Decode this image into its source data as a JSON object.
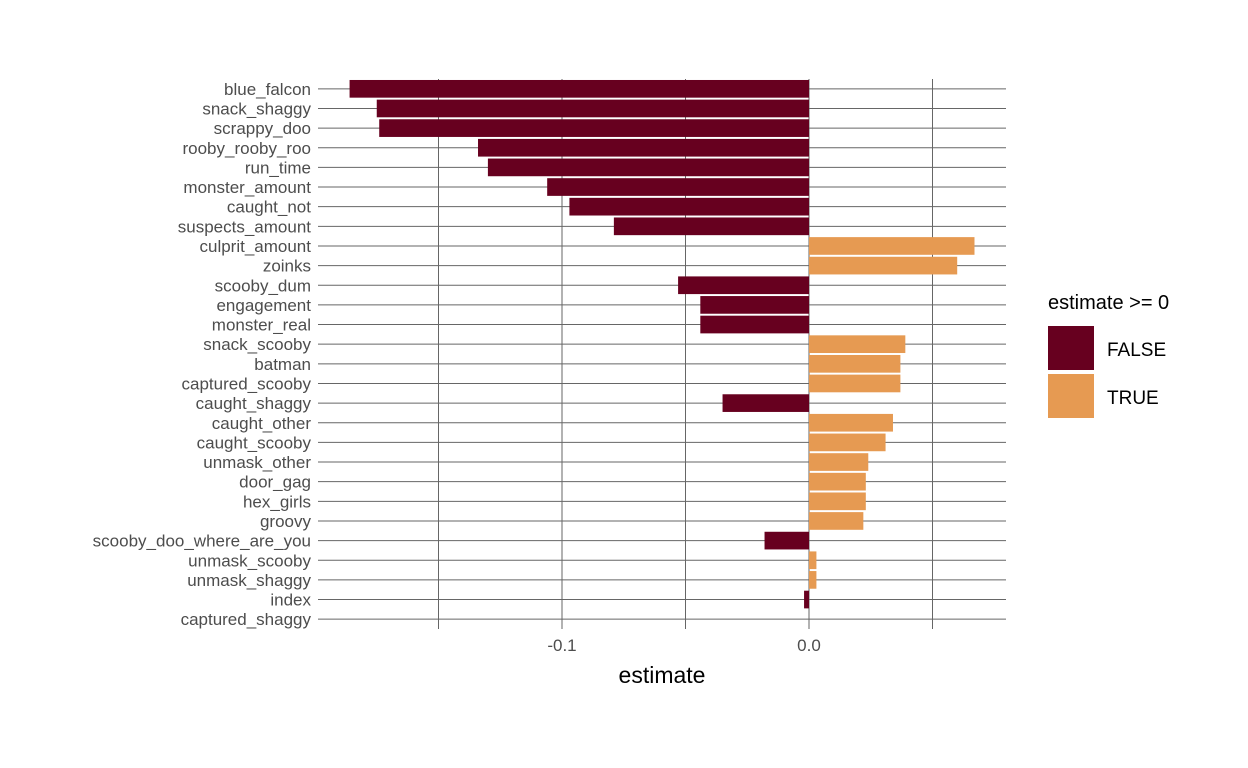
{
  "chart_data": {
    "type": "bar",
    "orientation": "horizontal",
    "xlabel": "estimate",
    "ylabel": "",
    "xlim": [
      -0.2,
      0.08
    ],
    "x_ticks": [
      -0.1,
      0.0
    ],
    "x_tick_labels": [
      "-0.1",
      "0.0"
    ],
    "grid": true,
    "legend": {
      "title": "estimate >= 0",
      "position": "right",
      "entries": [
        {
          "label": "FALSE",
          "color": "#67001F"
        },
        {
          "label": "TRUE",
          "color": "#E69A52"
        }
      ]
    },
    "categories": [
      "blue_falcon",
      "snack_shaggy",
      "scrappy_doo",
      "rooby_rooby_roo",
      "run_time",
      "monster_amount",
      "caught_not",
      "suspects_amount",
      "culprit_amount",
      "zoinks",
      "scooby_dum",
      "engagement",
      "monster_real",
      "snack_scooby",
      "batman",
      "captured_scooby",
      "caught_shaggy",
      "caught_other",
      "caught_scooby",
      "unmask_other",
      "door_gag",
      "hex_girls",
      "groovy",
      "scooby_doo_where_are_you",
      "unmask_scooby",
      "unmask_shaggy",
      "index",
      "captured_shaggy"
    ],
    "values": [
      -0.186,
      -0.175,
      -0.174,
      -0.134,
      -0.13,
      -0.106,
      -0.097,
      -0.079,
      0.067,
      0.06,
      -0.053,
      -0.044,
      -0.044,
      0.039,
      0.037,
      0.037,
      -0.035,
      0.034,
      0.031,
      0.024,
      0.023,
      0.023,
      0.022,
      -0.018,
      0.003,
      0.003,
      -0.002,
      0.0
    ]
  }
}
